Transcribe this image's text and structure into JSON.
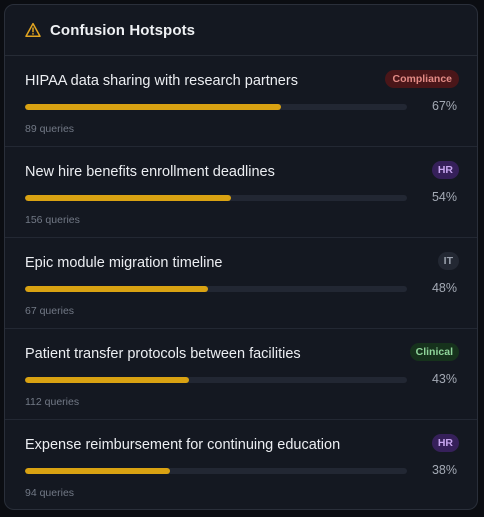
{
  "header": {
    "title": "Confusion Hotspots",
    "icon": "warning-triangle-icon",
    "icon_color": "#e2a521"
  },
  "colors": {
    "bar_fill": "#d9a212",
    "bar_track": "#222733"
  },
  "hotspots": [
    {
      "title": "HIPAA data sharing with research partners",
      "tag": "Compliance",
      "tag_kind": "compliance",
      "percent": 67,
      "percent_label": "67%",
      "queries": "89 queries"
    },
    {
      "title": "New hire benefits enrollment deadlines",
      "tag": "HR",
      "tag_kind": "hr",
      "percent": 54,
      "percent_label": "54%",
      "queries": "156 queries"
    },
    {
      "title": "Epic module migration timeline",
      "tag": "IT",
      "tag_kind": "it",
      "percent": 48,
      "percent_label": "48%",
      "queries": "67 queries"
    },
    {
      "title": "Patient transfer protocols between facilities",
      "tag": "Clinical",
      "tag_kind": "clinical",
      "percent": 43,
      "percent_label": "43%",
      "queries": "112 queries"
    },
    {
      "title": "Expense reimbursement for continuing education",
      "tag": "HR",
      "tag_kind": "hr",
      "percent": 38,
      "percent_label": "38%",
      "queries": "94 queries"
    }
  ]
}
